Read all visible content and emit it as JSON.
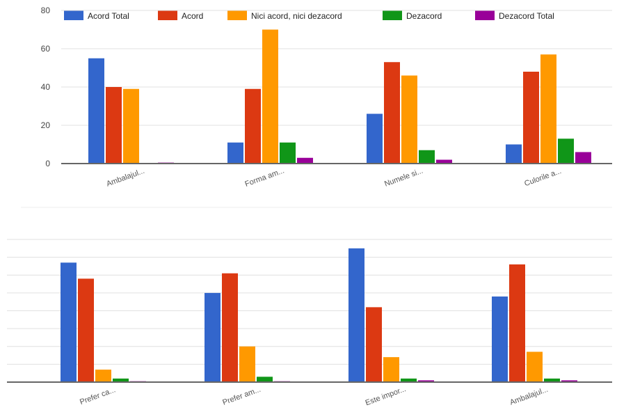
{
  "chart_data": [
    {
      "type": "bar",
      "categories": [
        "Ambalajul...",
        "Forma am...",
        "Numele si...",
        "Culorile a..."
      ],
      "series": [
        {
          "name": "Acord Total",
          "color": "#3366cc",
          "values": [
            55,
            11,
            26,
            10
          ]
        },
        {
          "name": "Acord",
          "color": "#dc3912",
          "values": [
            40,
            39,
            53,
            48
          ]
        },
        {
          "name": "Nici acord, nici dezacord",
          "color": "#ff9900",
          "values": [
            39,
            70,
            46,
            57
          ]
        },
        {
          "name": "Dezacord",
          "color": "#109618",
          "values": [
            0,
            11,
            7,
            13
          ]
        },
        {
          "name": "Dezacord Total",
          "color": "#990099",
          "values": [
            0.5,
            3,
            2,
            6
          ]
        }
      ],
      "yticks": [
        0,
        20,
        40,
        60,
        80
      ],
      "ylim": [
        0,
        80
      ],
      "grid": true,
      "legend": "top"
    },
    {
      "type": "bar",
      "categories": [
        "Prefer ca...",
        "Prefer am...",
        "Este impor...",
        "Ambalajul..."
      ],
      "series": [
        {
          "name": "Acord Total",
          "color": "#3366cc",
          "values": [
            67,
            50,
            75,
            48
          ]
        },
        {
          "name": "Acord",
          "color": "#dc3912",
          "values": [
            58,
            61,
            42,
            66
          ]
        },
        {
          "name": "Nici acord, nici dezacord",
          "color": "#ff9900",
          "values": [
            7,
            20,
            14,
            17
          ]
        },
        {
          "name": "Dezacord",
          "color": "#109618",
          "values": [
            2,
            3,
            2,
            2
          ]
        },
        {
          "name": "Dezacord Total",
          "color": "#990099",
          "values": [
            0.5,
            0.5,
            1,
            1
          ]
        }
      ],
      "ylim": [
        0,
        80
      ],
      "grid": true,
      "legend": "none"
    }
  ]
}
